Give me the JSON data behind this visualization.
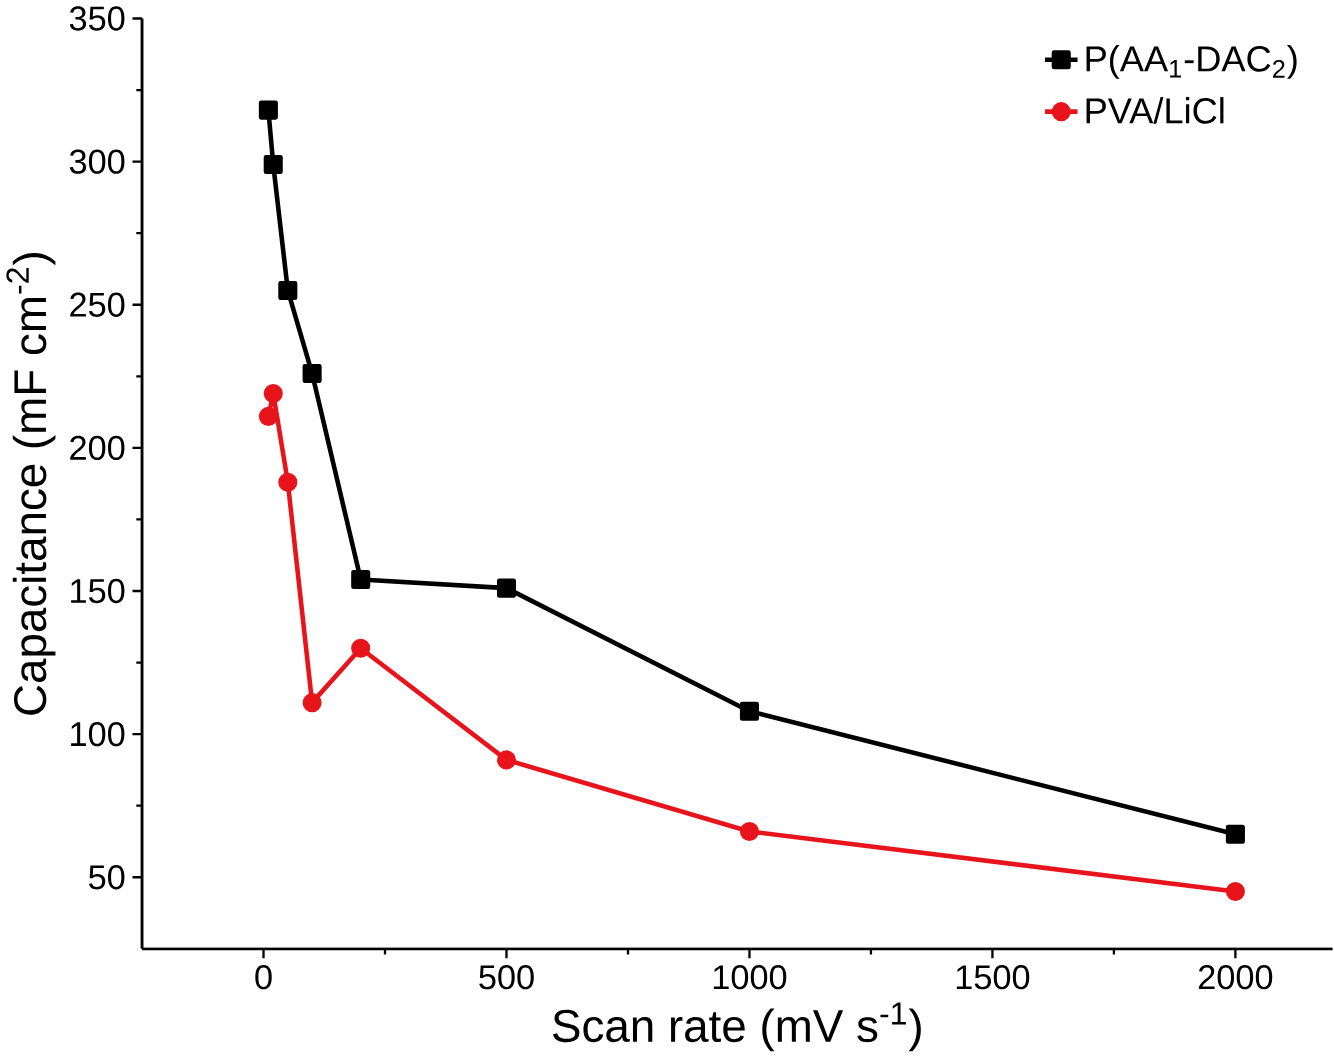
{
  "chart_data": {
    "type": "line",
    "xlabel": "Scan rate (mV s$^{-1}$)",
    "ylabel": "Capacitance (mF cm$^{-2}$)",
    "x": [
      10,
      20,
      50,
      100,
      200,
      500,
      1000,
      2000
    ],
    "series": [
      {
        "name": "P(AA$_{1}$-DAC$_{2}$)",
        "color": "#000000",
        "marker": "square",
        "values": [
          318,
          299,
          255,
          226,
          154,
          151,
          108,
          65
        ]
      },
      {
        "name": "PVA/LiCl",
        "color": "#e8141b",
        "marker": "circle",
        "values": [
          211,
          219,
          188,
          111,
          130,
          91,
          66,
          45
        ]
      }
    ],
    "xlim": [
      -250,
      2200
    ],
    "ylim": [
      25,
      350
    ],
    "xticks": [
      0,
      500,
      1000,
      1500,
      2000
    ],
    "yticks": [
      50,
      100,
      150,
      200,
      250,
      300,
      350
    ],
    "legend": "top right",
    "grid": false,
    "line_style": "solid"
  }
}
